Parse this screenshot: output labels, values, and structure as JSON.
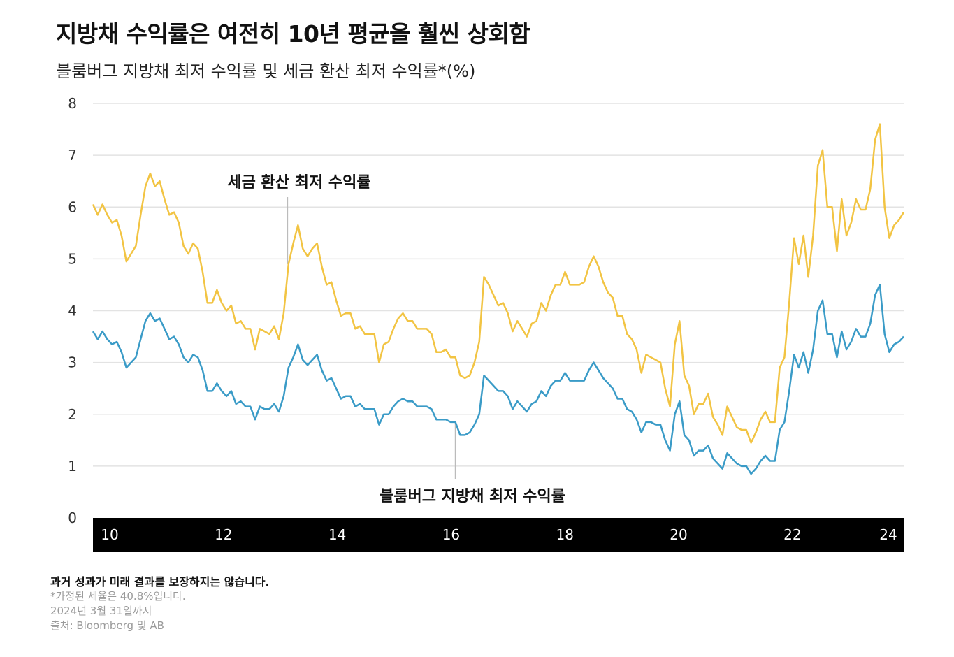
{
  "header": {
    "title": "지방채 수익률은 여전히 10년 평균을 훨씬 상회함",
    "subtitle": "블룸버그 지방채 최저 수익률 및 세금 환산 최저 수익률*(%)"
  },
  "footer": {
    "disclaimer": "과거 성과가 미래 결과를 보장하지는 않습니다.",
    "note1": "*가정된 세율은 40.8%입니다.",
    "note2": "2024년 3월 31일까지",
    "source": "출처: Bloomberg 및 AB"
  },
  "colors": {
    "tax_equivalent": "#F2C443",
    "muni": "#3A9BC7",
    "axis_band": "#000000",
    "gridline": "#e3e3e3"
  },
  "chart_data": {
    "type": "line",
    "x_start": 2010.0,
    "x_end": 2024.25,
    "ylim": [
      0,
      8
    ],
    "yticks": [
      "0",
      "1",
      "2",
      "3",
      "4",
      "5",
      "6",
      "7",
      "8"
    ],
    "xticks": [
      {
        "value": 2010,
        "label": "10"
      },
      {
        "value": 2012,
        "label": "12"
      },
      {
        "value": 2014,
        "label": "14"
      },
      {
        "value": 2016,
        "label": "16"
      },
      {
        "value": 2018,
        "label": "18"
      },
      {
        "value": 2020,
        "label": "20"
      },
      {
        "value": 2022,
        "label": "22"
      },
      {
        "value": 2024,
        "label": "24"
      }
    ],
    "grid": true,
    "series": [
      {
        "name": "세금 환산 최저 수익률",
        "annotation_x": 2013.42,
        "values": [
          6.05,
          5.85,
          6.05,
          5.85,
          5.7,
          5.75,
          5.45,
          4.95,
          5.1,
          5.25,
          5.85,
          6.4,
          6.65,
          6.4,
          6.5,
          6.15,
          5.85,
          5.9,
          5.7,
          5.25,
          5.1,
          5.3,
          5.2,
          4.75,
          4.15,
          4.15,
          4.4,
          4.15,
          4.0,
          4.1,
          3.75,
          3.8,
          3.65,
          3.65,
          3.25,
          3.65,
          3.6,
          3.55,
          3.7,
          3.45,
          3.95,
          4.9,
          5.3,
          5.65,
          5.2,
          5.05,
          5.2,
          5.3,
          4.85,
          4.5,
          4.55,
          4.2,
          3.9,
          3.95,
          3.95,
          3.65,
          3.7,
          3.55,
          3.55,
          3.55,
          3.0,
          3.35,
          3.4,
          3.65,
          3.85,
          3.95,
          3.8,
          3.8,
          3.65,
          3.65,
          3.65,
          3.55,
          3.2,
          3.2,
          3.25,
          3.1,
          3.1,
          2.75,
          2.7,
          2.75,
          3.0,
          3.4,
          4.65,
          4.5,
          4.3,
          4.1,
          4.15,
          3.95,
          3.6,
          3.8,
          3.65,
          3.5,
          3.75,
          3.8,
          4.15,
          4.0,
          4.3,
          4.5,
          4.5,
          4.75,
          4.5,
          4.5,
          4.5,
          4.55,
          4.85,
          5.05,
          4.85,
          4.55,
          4.35,
          4.25,
          3.9,
          3.9,
          3.55,
          3.45,
          3.25,
          2.8,
          3.15,
          3.1,
          3.05,
          3.0,
          2.5,
          2.15,
          3.35,
          3.8,
          2.75,
          2.55,
          2.0,
          2.2,
          2.2,
          2.4,
          1.95,
          1.8,
          1.6,
          2.15,
          1.95,
          1.75,
          1.7,
          1.7,
          1.45,
          1.65,
          1.9,
          2.05,
          1.85,
          1.85,
          2.9,
          3.1,
          4.15,
          5.4,
          4.9,
          5.45,
          4.65,
          5.45,
          6.8,
          7.1,
          6.0,
          6.0,
          5.15,
          6.15,
          5.45,
          5.7,
          6.15,
          5.95,
          5.95,
          6.35,
          7.3,
          7.6,
          6.0,
          5.4,
          5.65,
          5.75,
          5.9
        ]
      },
      {
        "name": "블룸버그 지방채 최저 수익률",
        "annotation_x": 2016.37,
        "values": [
          3.6,
          3.45,
          3.6,
          3.45,
          3.35,
          3.4,
          3.2,
          2.9,
          3.0,
          3.1,
          3.45,
          3.8,
          3.95,
          3.8,
          3.85,
          3.65,
          3.45,
          3.5,
          3.35,
          3.1,
          3.0,
          3.15,
          3.1,
          2.85,
          2.45,
          2.45,
          2.6,
          2.45,
          2.35,
          2.45,
          2.2,
          2.25,
          2.15,
          2.15,
          1.9,
          2.15,
          2.1,
          2.1,
          2.2,
          2.05,
          2.35,
          2.9,
          3.1,
          3.35,
          3.05,
          2.95,
          3.05,
          3.15,
          2.85,
          2.65,
          2.7,
          2.5,
          2.3,
          2.35,
          2.35,
          2.15,
          2.2,
          2.1,
          2.1,
          2.1,
          1.8,
          2.0,
          2.0,
          2.15,
          2.25,
          2.3,
          2.25,
          2.25,
          2.15,
          2.15,
          2.15,
          2.1,
          1.9,
          1.9,
          1.9,
          1.85,
          1.85,
          1.6,
          1.6,
          1.65,
          1.8,
          2.0,
          2.75,
          2.65,
          2.55,
          2.45,
          2.45,
          2.35,
          2.1,
          2.25,
          2.15,
          2.05,
          2.2,
          2.25,
          2.45,
          2.35,
          2.55,
          2.65,
          2.65,
          2.8,
          2.65,
          2.65,
          2.65,
          2.65,
          2.85,
          3.0,
          2.85,
          2.7,
          2.6,
          2.5,
          2.3,
          2.3,
          2.1,
          2.05,
          1.9,
          1.65,
          1.85,
          1.85,
          1.8,
          1.8,
          1.5,
          1.3,
          2.0,
          2.25,
          1.6,
          1.5,
          1.2,
          1.3,
          1.3,
          1.4,
          1.15,
          1.05,
          0.95,
          1.25,
          1.15,
          1.05,
          1.0,
          1.0,
          0.85,
          0.95,
          1.1,
          1.2,
          1.1,
          1.1,
          1.7,
          1.85,
          2.45,
          3.15,
          2.9,
          3.2,
          2.8,
          3.25,
          4.0,
          4.2,
          3.55,
          3.55,
          3.1,
          3.6,
          3.25,
          3.4,
          3.65,
          3.5,
          3.5,
          3.75,
          4.3,
          4.5,
          3.55,
          3.2,
          3.35,
          3.4,
          3.5
        ]
      }
    ]
  }
}
